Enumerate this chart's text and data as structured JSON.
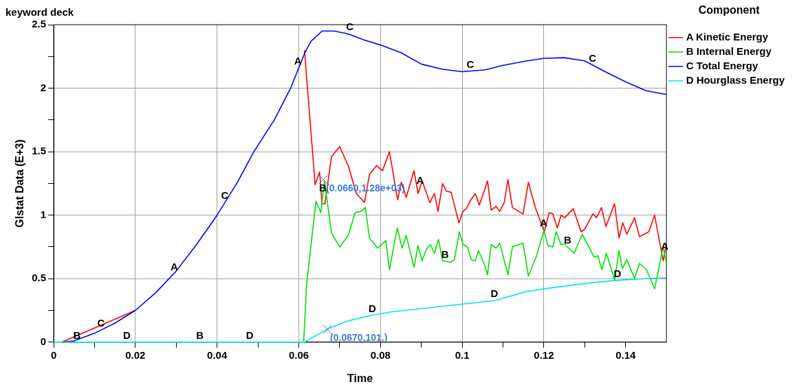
{
  "chart_data": {
    "type": "line",
    "title": "keyword deck",
    "xlabel": "Time",
    "ylabel": "Glstat Data (E+3)",
    "legend_title": "Component",
    "legend": "top right",
    "grid": true,
    "marker": "none",
    "line_style": "solid",
    "xlim": [
      0,
      0.15
    ],
    "xticks": [
      0,
      {
        "value": 0.01,
        "label": null
      },
      0.02,
      {
        "value": 0.03,
        "label": null
      },
      0.04,
      {
        "value": 0.05,
        "label": null
      },
      0.06,
      {
        "value": 0.07,
        "label": null
      },
      0.08,
      {
        "value": 0.09,
        "label": null
      },
      0.1,
      {
        "value": 0.11,
        "label": null
      },
      0.12,
      {
        "value": 0.13,
        "label": null
      },
      0.14
    ],
    "ylim": [
      0,
      2.5
    ],
    "yticks": [
      0,
      {
        "value": 0.25,
        "label": null
      },
      0.5,
      {
        "value": 0.75,
        "label": null
      },
      1,
      {
        "value": 1.25,
        "label": null
      },
      1.5,
      {
        "value": 1.75,
        "label": null
      },
      2,
      {
        "value": 2.25,
        "label": null
      },
      2.5
    ],
    "series": [
      {
        "name": "A Kinetic Energy",
        "color": "#ff0000",
        "x": [
          0.002,
          0.02,
          0.03,
          0.04,
          0.049,
          0.058,
          0.0614,
          0.064,
          0.0651,
          0.0657,
          0.0664,
          0.068,
          0.07,
          0.0721,
          0.0741,
          0.0761,
          0.0773,
          0.079,
          0.0805,
          0.0822,
          0.0842,
          0.0851,
          0.0863,
          0.0882,
          0.0892,
          0.0902,
          0.0921,
          0.0932,
          0.0941,
          0.0952,
          0.0961,
          0.0973,
          0.0992,
          0.1002,
          0.101,
          0.1021,
          0.1032,
          0.1042,
          0.1057,
          0.1062,
          0.1071,
          0.1083,
          0.1092,
          0.1103,
          0.1112,
          0.1123,
          0.1149,
          0.1162,
          0.1178,
          0.1201,
          0.1213,
          0.1222,
          0.1233,
          0.1242,
          0.1251,
          0.1272,
          0.1291,
          0.13,
          0.132,
          0.1329,
          0.1341,
          0.1352,
          0.1373,
          0.1384,
          0.1393,
          0.1403,
          0.1422,
          0.1434,
          0.1457,
          0.1471,
          0.1492,
          0.15
        ],
        "values": [
          0,
          0.25,
          null,
          null,
          null,
          null,
          2.3,
          1.24,
          1.34,
          1.09,
          1.09,
          1.46,
          1.54,
          1.39,
          1.17,
          1.1,
          1.32,
          1.39,
          1.35,
          1.5,
          1.12,
          1.26,
          1.14,
          1.35,
          1.17,
          1.27,
          1.1,
          1.17,
          1.03,
          1.25,
          1.19,
          1.18,
          0.94,
          1.03,
          1.05,
          1.12,
          1.17,
          1.08,
          1.22,
          1.27,
          1.04,
          1.07,
          1.03,
          1.1,
          1.28,
          1.06,
          1.01,
          1.26,
          1.07,
          0.87,
          1.02,
          1.01,
          0.9,
          1.0,
          0.98,
          1.05,
          0.87,
          0.89,
          1.01,
          0.98,
          1.06,
          0.91,
          1.09,
          0.82,
          0.94,
          0.85,
          0.98,
          0.83,
          0.87,
          1.0,
          0.64,
          0.77
        ]
      },
      {
        "name": "B Internal Energy",
        "color": "#00e000",
        "x": [
          0.002,
          0.0612,
          0.0619,
          0.0642,
          0.0654,
          0.0663,
          0.068,
          0.07,
          0.0721,
          0.0738,
          0.0753,
          0.0763,
          0.0773,
          0.0793,
          0.0813,
          0.0822,
          0.0841,
          0.0853,
          0.0863,
          0.0882,
          0.0892,
          0.0902,
          0.0912,
          0.0922,
          0.0932,
          0.0942,
          0.0952,
          0.0973,
          0.0981,
          0.0993,
          0.1002,
          0.1013,
          0.1022,
          0.1032,
          0.104,
          0.1056,
          0.1062,
          0.1071,
          0.1083,
          0.1092,
          0.1112,
          0.1123,
          0.1149,
          0.1162,
          0.1181,
          0.12,
          0.121,
          0.1222,
          0.123,
          0.1242,
          0.1251,
          0.1274,
          0.1294,
          0.1323,
          0.1332,
          0.1342,
          0.1353,
          0.1373,
          0.1384,
          0.1392,
          0.1403,
          0.1422,
          0.1434,
          0.1451,
          0.1471,
          0.1492,
          0.15
        ],
        "values": [
          0,
          0,
          0.45,
          1.11,
          1.02,
          1.27,
          0.86,
          0.75,
          0.84,
          1.02,
          1.03,
          1.06,
          0.82,
          0.74,
          0.8,
          0.57,
          0.9,
          0.74,
          0.84,
          0.59,
          0.76,
          0.64,
          0.73,
          0.77,
          0.7,
          0.81,
          0.64,
          0.63,
          0.65,
          0.87,
          0.77,
          0.75,
          0.65,
          0.64,
          0.72,
          0.6,
          0.53,
          0.77,
          0.74,
          0.78,
          0.53,
          0.75,
          0.78,
          0.52,
          0.67,
          0.88,
          0.76,
          0.75,
          0.87,
          0.77,
          0.77,
          0.7,
          0.85,
          0.67,
          0.68,
          0.57,
          0.7,
          0.49,
          0.72,
          0.58,
          0.65,
          0.5,
          0.62,
          0.57,
          0.42,
          0.75,
          0.62
        ]
      },
      {
        "name": "C Total Energy",
        "color": "#0000ff",
        "x": [
          0.002,
          0.005,
          0.01,
          0.015,
          0.02,
          0.025,
          0.03,
          0.035,
          0.04,
          0.045,
          0.049,
          0.054,
          0.058,
          0.0615,
          0.063,
          0.0657,
          0.0686,
          0.0718,
          0.076,
          0.08,
          0.085,
          0.09,
          0.095,
          0.1,
          0.1057,
          0.11,
          0.115,
          0.12,
          0.125,
          0.13,
          0.135,
          0.14,
          0.145,
          0.15
        ],
        "values": [
          0,
          0.01,
          0.07,
          0.15,
          0.25,
          0.39,
          0.56,
          0.77,
          1.0,
          1.26,
          1.5,
          1.75,
          2.0,
          2.28,
          2.37,
          2.45,
          2.45,
          2.43,
          2.38,
          2.34,
          2.28,
          2.19,
          2.15,
          2.13,
          2.145,
          2.18,
          2.21,
          2.235,
          2.24,
          2.215,
          2.13,
          2.05,
          1.98,
          1.95
        ]
      },
      {
        "name": "D Hourglass Energy",
        "color": "#00e5ee",
        "x": [
          0,
          0.0614,
          0.0671,
          0.0721,
          0.0779,
          0.0825,
          0.0903,
          0.1002,
          0.108,
          0.1155,
          0.123,
          0.1317,
          0.1375,
          0.1462,
          0.15
        ],
        "values": [
          0,
          0,
          0.105,
          0.168,
          0.212,
          0.238,
          0.265,
          0.3,
          0.327,
          0.397,
          0.433,
          0.468,
          0.486,
          0.503,
          0.505
        ]
      },
      {
        "type": "scatter",
        "color": "#3a7be0",
        "marker": "cross",
        "x": [
          0.066
        ],
        "values": [
          1.28
        ],
        "value_labels": [
          "(0.0660,1.28e+03)"
        ]
      },
      {
        "type": "scatter",
        "color": "#3a7be0",
        "marker": "cross",
        "x": [
          0.067
        ],
        "values": [
          0.101
        ],
        "value_labels": [
          "(0.0670,101.)"
        ]
      }
    ],
    "annotations": [
      {
        "text": "C",
        "x": 0.0116,
        "y": 0.096
      },
      {
        "text": "C",
        "x": 0.0419,
        "y": 1.1
      },
      {
        "text": "C",
        "x": 0.0725,
        "y": 2.43
      },
      {
        "text": "C",
        "x": 0.102,
        "y": 2.135
      },
      {
        "text": "C",
        "x": 0.1319,
        "y": 2.183
      },
      {
        "text": "A",
        "x": 0.0295,
        "y": 0.54
      },
      {
        "text": "A",
        "x": 0.0598,
        "y": 2.16
      },
      {
        "text": "A",
        "x": 0.0897,
        "y": 1.22
      },
      {
        "text": "A",
        "x": 0.1199,
        "y": 0.886
      },
      {
        "text": "A",
        "x": 0.1496,
        "y": 0.7
      },
      {
        "text": "B",
        "x": 0.0057,
        "y": 0
      },
      {
        "text": "B",
        "x": 0.0358,
        "y": 0
      },
      {
        "text": "B",
        "x": 0.0659,
        "y": 1.16
      },
      {
        "text": "B",
        "x": 0.0958,
        "y": 0.637
      },
      {
        "text": "B",
        "x": 0.1258,
        "y": 0.749
      },
      {
        "text": "D",
        "x": 0.0179,
        "y": 0
      },
      {
        "text": "D",
        "x": 0.048,
        "y": 0
      },
      {
        "text": "D",
        "x": 0.078,
        "y": 0.213
      },
      {
        "text": "D",
        "x": 0.1079,
        "y": 0.327
      },
      {
        "text": "D",
        "x": 0.138,
        "y": 0.487
      }
    ]
  }
}
